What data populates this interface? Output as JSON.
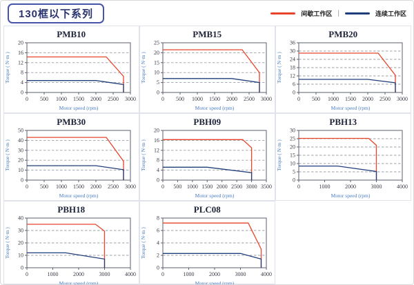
{
  "header": {
    "title": "130框以下系列"
  },
  "legend": {
    "intermittent_label": "间歇工作区",
    "separator": "|",
    "continuous_label": "连续工作区",
    "intermittent_color": "#e8432b",
    "continuous_color": "#1f3d7a"
  },
  "chart_data": [
    {
      "type": "line",
      "title": "PMB10",
      "xlabel": "Motor speed (rpm)",
      "ylabel": "Torque ( N·m )",
      "xlim": [
        0,
        3000
      ],
      "xticks": [
        0,
        500,
        1000,
        1500,
        2000,
        2500,
        3000
      ],
      "ylim": [
        0,
        20
      ],
      "yticks": [
        0,
        4,
        8,
        12,
        16,
        20
      ],
      "grid": "dashed-horizontal",
      "legend_position": "none",
      "series": [
        {
          "name": "间歇工作区",
          "color": "#e8432b",
          "points": [
            [
              0,
              14.3
            ],
            [
              2300,
              14.3
            ],
            [
              2800,
              6.5
            ],
            [
              2800,
              0
            ]
          ]
        },
        {
          "name": "连续工作区",
          "color": "#1f3d7a",
          "points": [
            [
              0,
              4.8
            ],
            [
              2000,
              4.8
            ],
            [
              2800,
              3.2
            ],
            [
              2800,
              0
            ]
          ]
        }
      ]
    },
    {
      "type": "line",
      "title": "PMB15",
      "xlabel": "Motor speed (rpm)",
      "ylabel": "Torque ( N·m )",
      "xlim": [
        0,
        3000
      ],
      "xticks": [
        0,
        500,
        1000,
        1500,
        2000,
        2500,
        3000
      ],
      "ylim": [
        0,
        25
      ],
      "yticks": [
        0,
        5,
        10,
        15,
        20,
        25
      ],
      "grid": "dashed-horizontal",
      "legend_position": "none",
      "series": [
        {
          "name": "间歇工作区",
          "color": "#e8432b",
          "points": [
            [
              0,
              21.5
            ],
            [
              2300,
              21.5
            ],
            [
              2800,
              10
            ],
            [
              2800,
              0
            ]
          ]
        },
        {
          "name": "连续工作区",
          "color": "#1f3d7a",
          "points": [
            [
              0,
              7
            ],
            [
              2000,
              7
            ],
            [
              2800,
              5
            ],
            [
              2800,
              0
            ]
          ]
        }
      ]
    },
    {
      "type": "line",
      "title": "PMB20",
      "xlabel": "Motor speed (rpm)",
      "ylabel": "Torque ( N·m )",
      "xlim": [
        0,
        3000
      ],
      "xticks": [
        0,
        500,
        1000,
        1500,
        2000,
        2500,
        3000
      ],
      "ylim": [
        0,
        36
      ],
      "yticks": [
        0,
        6,
        12,
        18,
        24,
        30,
        36
      ],
      "grid": "dashed-horizontal",
      "legend_position": "none",
      "series": [
        {
          "name": "间歇工作区",
          "color": "#e8432b",
          "points": [
            [
              0,
              28.5
            ],
            [
              2300,
              28.5
            ],
            [
              2800,
              12.5
            ],
            [
              2800,
              0
            ]
          ]
        },
        {
          "name": "连续工作区",
          "color": "#1f3d7a",
          "points": [
            [
              0,
              9.5
            ],
            [
              2000,
              9.5
            ],
            [
              2800,
              7
            ],
            [
              2800,
              0
            ]
          ]
        }
      ]
    },
    {
      "type": "line",
      "title": "PMB30",
      "xlabel": "Motor speed (rpm)",
      "ylabel": "Torque ( N·m )",
      "xlim": [
        0,
        3000
      ],
      "xticks": [
        0,
        500,
        1000,
        1500,
        2000,
        2500,
        3000
      ],
      "ylim": [
        0,
        50
      ],
      "yticks": [
        0,
        10,
        20,
        30,
        40,
        50
      ],
      "grid": "dashed-horizontal",
      "legend_position": "none",
      "series": [
        {
          "name": "间歇工作区",
          "color": "#e8432b",
          "points": [
            [
              0,
              43
            ],
            [
              2300,
              43
            ],
            [
              2800,
              19
            ],
            [
              2800,
              0
            ]
          ]
        },
        {
          "name": "连续工作区",
          "color": "#1f3d7a",
          "points": [
            [
              0,
              14.5
            ],
            [
              2000,
              14.5
            ],
            [
              2800,
              10.5
            ],
            [
              2800,
              0
            ]
          ]
        }
      ]
    },
    {
      "type": "line",
      "title": "PBH09",
      "xlabel": "Motor speed (rpm)",
      "ylabel": "Torque ( N·m )",
      "xlim": [
        0,
        3500
      ],
      "xticks": [
        0,
        500,
        1000,
        1500,
        2000,
        2500,
        3000,
        3500
      ],
      "ylim": [
        0,
        20
      ],
      "yticks": [
        0,
        4,
        8,
        12,
        16,
        20
      ],
      "grid": "dashed-horizontal",
      "legend_position": "none",
      "series": [
        {
          "name": "间歇工作区",
          "color": "#e8432b",
          "points": [
            [
              0,
              16.3
            ],
            [
              2700,
              16.3
            ],
            [
              3000,
              13
            ],
            [
              3000,
              0
            ]
          ]
        },
        {
          "name": "连续工作区",
          "color": "#1f3d7a",
          "points": [
            [
              0,
              5.2
            ],
            [
              1500,
              5.2
            ],
            [
              3000,
              3
            ],
            [
              3000,
              0
            ]
          ]
        }
      ]
    },
    {
      "type": "line",
      "title": "PBH13",
      "xlabel": "Motor speed (rpm)",
      "ylabel": "Torque ( N·m )",
      "xlim": [
        0,
        4000
      ],
      "xticks": [
        0,
        1000,
        2000,
        3000,
        4000
      ],
      "ylim": [
        0,
        30
      ],
      "yticks": [
        0,
        5,
        10,
        15,
        20,
        25,
        30
      ],
      "grid": "dashed-horizontal",
      "legend_position": "none",
      "series": [
        {
          "name": "间歇工作区",
          "color": "#e8432b",
          "points": [
            [
              0,
              25.2
            ],
            [
              2700,
              25.2
            ],
            [
              3000,
              21
            ],
            [
              3000,
              0
            ]
          ]
        },
        {
          "name": "连续工作区",
          "color": "#1f3d7a",
          "points": [
            [
              0,
              8.5
            ],
            [
              1500,
              8.5
            ],
            [
              3000,
              5.2
            ],
            [
              3000,
              0
            ]
          ]
        }
      ]
    },
    {
      "type": "line",
      "title": "PBH18",
      "xlabel": "Motor speed (rpm)",
      "ylabel": "Torque ( N·m )",
      "xlim": [
        0,
        4000
      ],
      "xticks": [
        0,
        1000,
        2000,
        3000,
        4000
      ],
      "ylim": [
        0,
        40
      ],
      "yticks": [
        0,
        10,
        20,
        30,
        40
      ],
      "grid": "dashed-horizontal",
      "legend_position": "none",
      "series": [
        {
          "name": "间歇工作区",
          "color": "#e8432b",
          "points": [
            [
              0,
              35
            ],
            [
              2650,
              35
            ],
            [
              3000,
              29.5
            ],
            [
              3000,
              0
            ]
          ]
        },
        {
          "name": "连续工作区",
          "color": "#1f3d7a",
          "points": [
            [
              0,
              12
            ],
            [
              1500,
              12
            ],
            [
              3000,
              7
            ],
            [
              3000,
              0
            ]
          ]
        }
      ]
    },
    {
      "type": "line",
      "title": "PLC08",
      "xlabel": "Motor speed (rpm)",
      "ylabel": "Torque ( N·m )",
      "xlim": [
        0,
        4000
      ],
      "xticks": [
        0,
        1000,
        2000,
        3000,
        4000
      ],
      "ylim": [
        0,
        8
      ],
      "yticks": [
        0,
        2,
        4,
        6,
        8
      ],
      "grid": "dashed-horizontal",
      "legend_position": "none",
      "series": [
        {
          "name": "间歇工作区",
          "color": "#e8432b",
          "points": [
            [
              0,
              7.2
            ],
            [
              3300,
              7.2
            ],
            [
              3800,
              3
            ],
            [
              3800,
              0
            ]
          ]
        },
        {
          "name": "连续工作区",
          "color": "#1f3d7a",
          "points": [
            [
              0,
              2.3
            ],
            [
              3000,
              2.3
            ],
            [
              3800,
              1.4
            ],
            [
              3800,
              0
            ]
          ]
        }
      ]
    }
  ]
}
